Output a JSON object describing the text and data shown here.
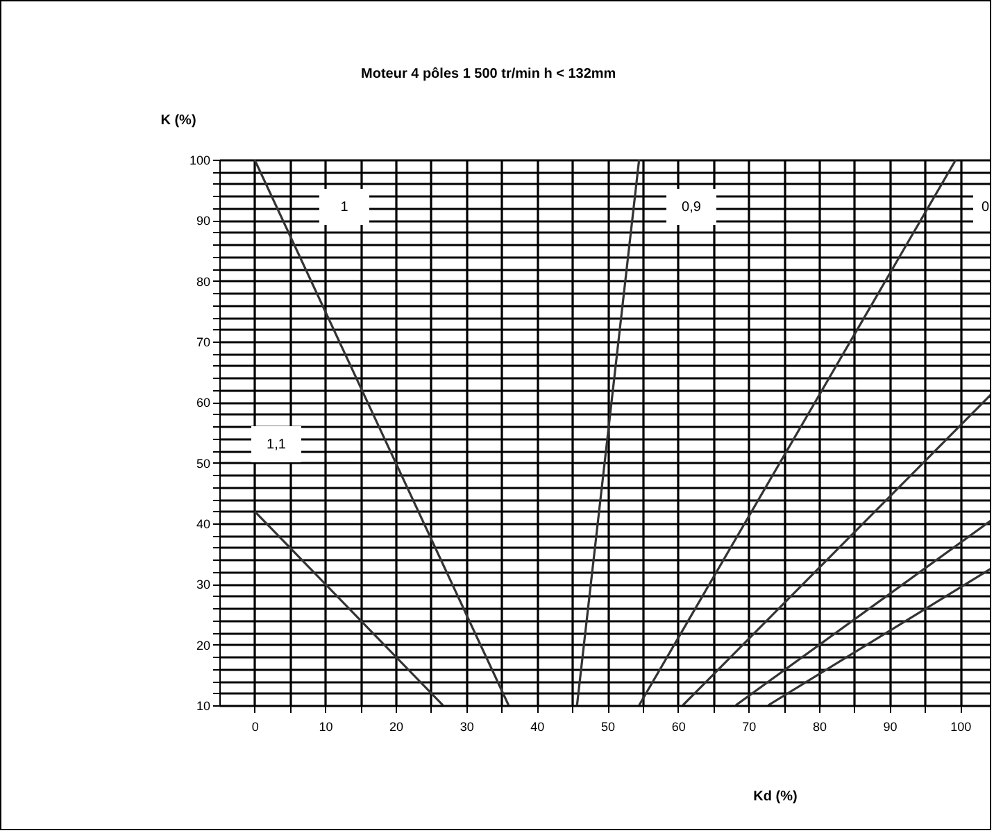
{
  "chart_data": {
    "type": "line",
    "title": "Moteur 4 pôles 1 500 tr/min h < 132mm",
    "xlabel": "Kd (%)",
    "ylabel": "K (%)",
    "xlim": [
      -5,
      105
    ],
    "ylim": [
      10,
      100
    ],
    "xticks": [
      0,
      {
        "value": 5,
        "label": null
      },
      10,
      {
        "value": 15,
        "label": null
      },
      20,
      {
        "value": 25,
        "label": null
      },
      30,
      {
        "value": 35,
        "label": null
      },
      40,
      {
        "value": 45,
        "label": null
      },
      50,
      {
        "value": 55,
        "label": null
      },
      60,
      {
        "value": 65,
        "label": null
      },
      70,
      {
        "value": 75,
        "label": null
      },
      80,
      {
        "value": 85,
        "label": null
      },
      90,
      {
        "value": 95,
        "label": null
      },
      100
    ],
    "yticks": [
      10,
      {
        "value": 12,
        "label": null
      },
      {
        "value": 14,
        "label": null
      },
      {
        "value": 16,
        "label": null
      },
      {
        "value": 18,
        "label": null
      },
      20,
      {
        "value": 22,
        "label": null
      },
      {
        "value": 24,
        "label": null
      },
      {
        "value": 26,
        "label": null
      },
      {
        "value": 28,
        "label": null
      },
      30,
      {
        "value": 32,
        "label": null
      },
      {
        "value": 34,
        "label": null
      },
      {
        "value": 36,
        "label": null
      },
      {
        "value": 38,
        "label": null
      },
      40,
      {
        "value": 42,
        "label": null
      },
      {
        "value": 44,
        "label": null
      },
      {
        "value": 46,
        "label": null
      },
      {
        "value": 48,
        "label": null
      },
      50,
      {
        "value": 52,
        "label": null
      },
      {
        "value": 54,
        "label": null
      },
      {
        "value": 56,
        "label": null
      },
      {
        "value": 58,
        "label": null
      },
      60,
      {
        "value": 62,
        "label": null
      },
      {
        "value": 64,
        "label": null
      },
      {
        "value": 66,
        "label": null
      },
      {
        "value": 68,
        "label": null
      },
      70,
      {
        "value": 72,
        "label": null
      },
      {
        "value": 74,
        "label": null
      },
      {
        "value": 76,
        "label": null
      },
      {
        "value": 78,
        "label": null
      },
      80,
      {
        "value": 82,
        "label": null
      },
      {
        "value": 84,
        "label": null
      },
      {
        "value": 86,
        "label": null
      },
      {
        "value": 88,
        "label": null
      },
      90,
      {
        "value": 92,
        "label": null
      },
      {
        "value": 94,
        "label": null
      },
      {
        "value": 96,
        "label": null
      },
      {
        "value": 98,
        "label": null
      },
      100
    ],
    "grid": true,
    "legend": false,
    "marker": "none",
    "line_style": "solid",
    "series": [
      {
        "color": "#333333",
        "x": [
          0,
          26.7
        ],
        "values": [
          42,
          10
        ]
      },
      {
        "color": "#333333",
        "x": [
          0,
          36
        ],
        "values": [
          100,
          10
        ]
      },
      {
        "color": "#333333",
        "x": [
          45.7,
          54.5
        ],
        "values": [
          10,
          100
        ]
      },
      {
        "color": "#333333",
        "x": [
          54.5,
          99.4
        ],
        "values": [
          10,
          100
        ]
      },
      {
        "color": "#333333",
        "x": [
          60.7,
          105
        ],
        "values": [
          10,
          62
        ]
      },
      {
        "color": "#333333",
        "x": [
          68.2,
          105
        ],
        "values": [
          10,
          41
        ]
      },
      {
        "color": "#333333",
        "x": [
          72.8,
          105
        ],
        "values": [
          10,
          33
        ]
      }
    ],
    "annotations": [
      "1",
      "1,1",
      "0,9",
      "0"
    ]
  }
}
